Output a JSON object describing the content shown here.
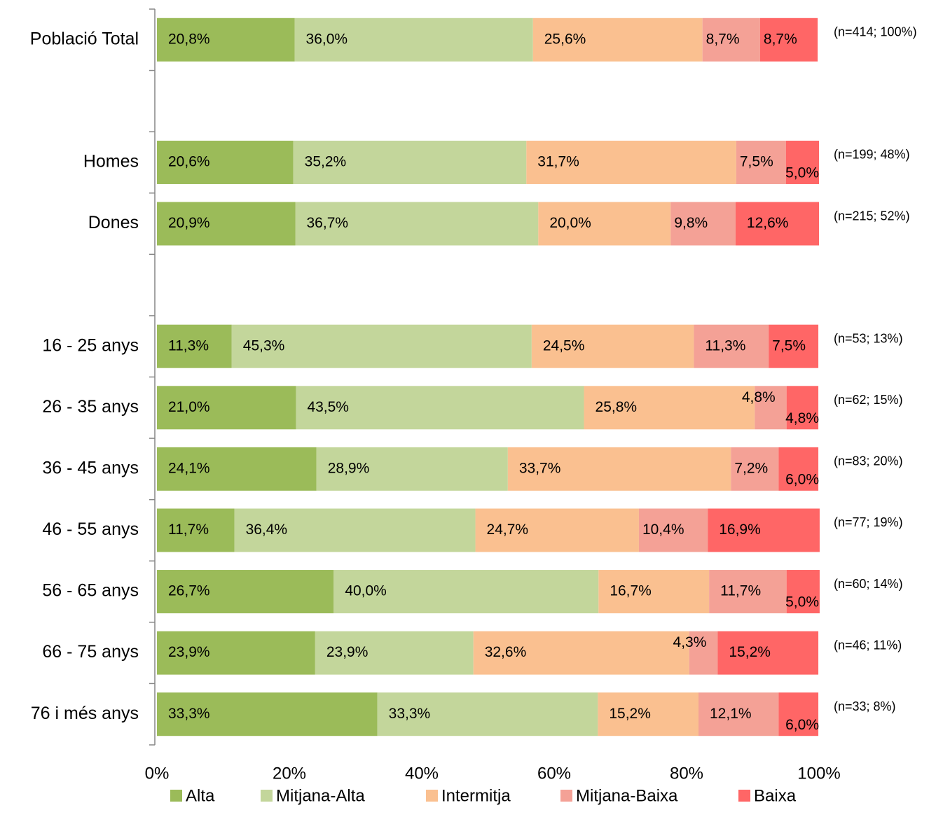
{
  "chart_data": {
    "type": "stacked_barh",
    "categories": [
      "Població Total",
      null,
      "Homes",
      "Dones",
      null,
      "16 - 25 anys",
      "26 - 35 anys",
      "36 - 45 anys",
      "46 - 55 anys",
      "56 - 65 anys",
      "66 - 75 anys",
      "76 i més anys"
    ],
    "series": [
      {
        "name": "Alta",
        "color": "#9bbb59",
        "values": [
          20.8,
          null,
          20.6,
          20.9,
          null,
          11.3,
          21.0,
          24.1,
          11.7,
          26.7,
          23.9,
          33.3
        ],
        "value_labels": [
          "20,8%",
          null,
          "20,6%",
          "20,9%",
          null,
          "11,3%",
          "21,0%",
          "24,1%",
          "11,7%",
          "26,7%",
          "23,9%",
          "33,3%"
        ]
      },
      {
        "name": "Mitjana-Alta",
        "color": "#c3d69b",
        "values": [
          36.0,
          null,
          35.2,
          36.7,
          null,
          45.3,
          43.5,
          28.9,
          36.4,
          40.0,
          23.9,
          33.3
        ],
        "value_labels": [
          "36,0%",
          null,
          "35,2%",
          "36,7%",
          null,
          "45,3%",
          "43,5%",
          "28,9%",
          "36,4%",
          "40,0%",
          "23,9%",
          "33,3%"
        ]
      },
      {
        "name": "Intermitja",
        "color": "#fac090",
        "values": [
          25.6,
          null,
          31.7,
          20.0,
          null,
          24.5,
          25.8,
          33.7,
          24.7,
          16.7,
          32.6,
          15.2
        ],
        "value_labels": [
          "25,6%",
          null,
          "31,7%",
          "20,0%",
          null,
          "24,5%",
          "25,8%",
          "33,7%",
          "24,7%",
          "16,7%",
          "32,6%",
          "15,2%"
        ]
      },
      {
        "name": "Mitjana-Baixa",
        "color": "#f4a196",
        "values": [
          8.7,
          null,
          7.5,
          9.8,
          null,
          11.3,
          4.8,
          7.2,
          10.4,
          11.7,
          4.3,
          12.1
        ],
        "value_labels": [
          "8,7%",
          null,
          "7,5%",
          "9,8%",
          null,
          "11,3%",
          "4,8%",
          "7,2%",
          "10,4%",
          "11,7%",
          "4,3%",
          "12,1%"
        ]
      },
      {
        "name": "Baixa",
        "color": "#ff6666",
        "values": [
          8.7,
          null,
          5.0,
          12.6,
          null,
          7.5,
          4.8,
          6.0,
          16.9,
          5.0,
          15.2,
          6.0
        ],
        "value_labels": [
          "8,7%",
          null,
          "5,0%",
          "12,6%",
          null,
          "7,5%",
          "4,8%",
          "6,0%",
          "16,9%",
          "5,0%",
          "15,2%",
          "6,0%"
        ]
      }
    ],
    "annotations": [
      "(n=414; 100%)",
      null,
      "(n=199; 48%)",
      "(n=215; 52%)",
      null,
      "(n=53; 13%)",
      "(n=62; 15%)",
      "(n=83; 20%)",
      "(n=77; 19%)",
      "(n=60; 14%)",
      "(n=46; 11%)",
      "(n=33; 8%)"
    ],
    "xlim": [
      0,
      100
    ],
    "xticks": [
      {
        "value": 0,
        "label": "0%"
      },
      {
        "value": 20,
        "label": "20%"
      },
      {
        "value": 40,
        "label": "40%"
      },
      {
        "value": 60,
        "label": "60%"
      },
      {
        "value": 80,
        "label": "80%"
      },
      {
        "value": 100,
        "label": "100%"
      }
    ],
    "legend": "bottom"
  }
}
